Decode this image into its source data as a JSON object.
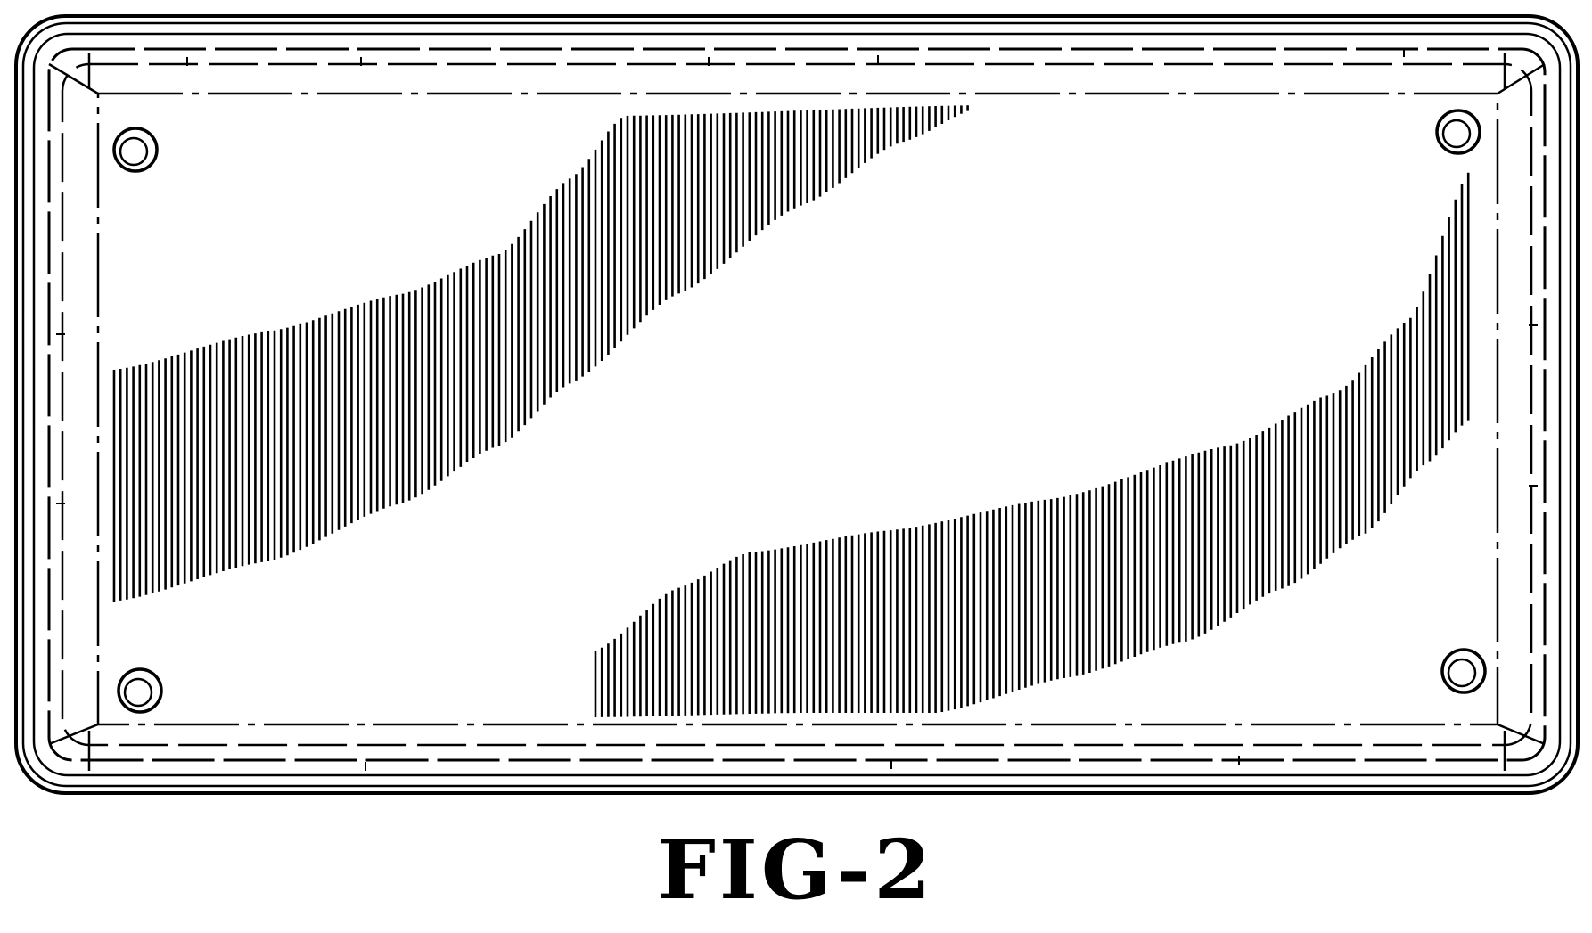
{
  "figure": {
    "caption": "FIG-2",
    "subject": "license-plate-frame",
    "line_color": "#000000",
    "background_color": "#ffffff",
    "mounting_holes": 4,
    "hatched_bands": 2
  }
}
